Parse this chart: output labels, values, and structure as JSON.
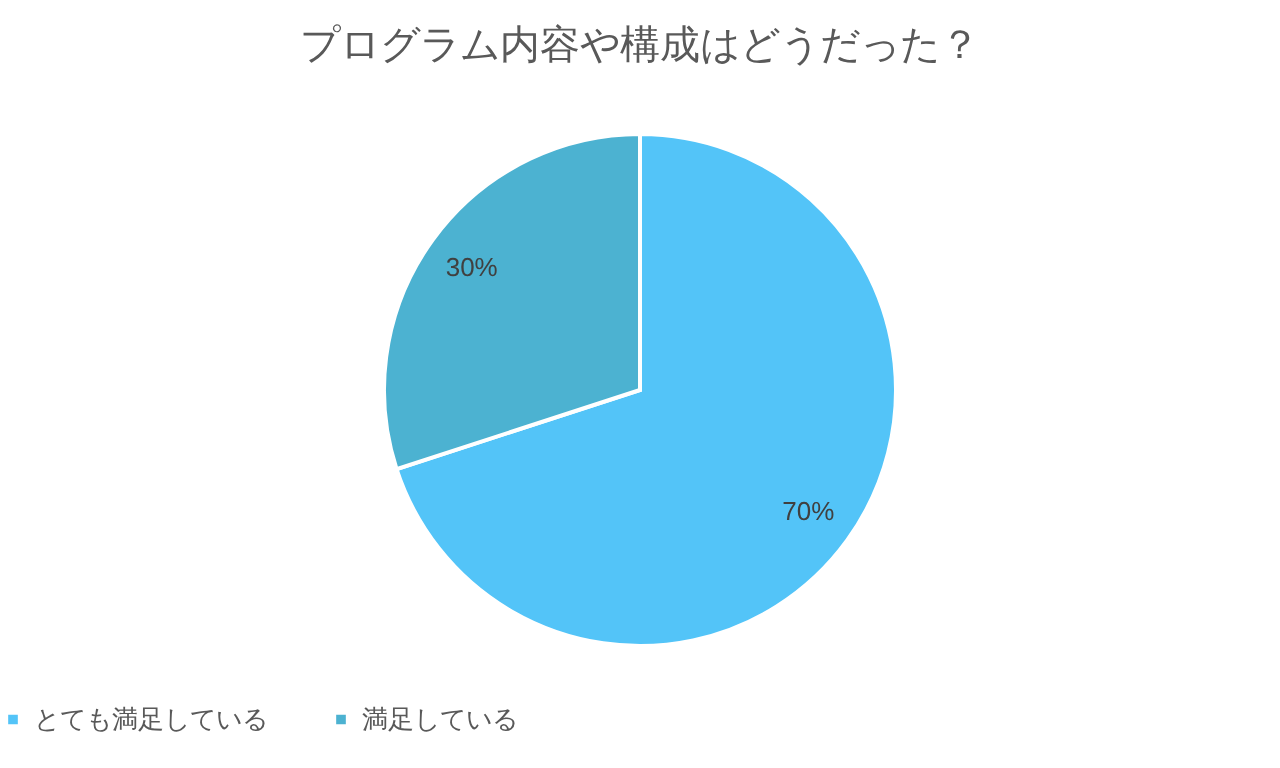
{
  "chart_data": {
    "type": "pie",
    "title": "プログラム内容や構成はどうだった？",
    "categories": [
      "とても満足している",
      "満足している"
    ],
    "values": [
      70,
      30
    ],
    "colors": [
      "#53c4f8",
      "#4cb2d1"
    ],
    "value_labels": [
      "70%",
      "30%"
    ],
    "legend": "bottom"
  }
}
